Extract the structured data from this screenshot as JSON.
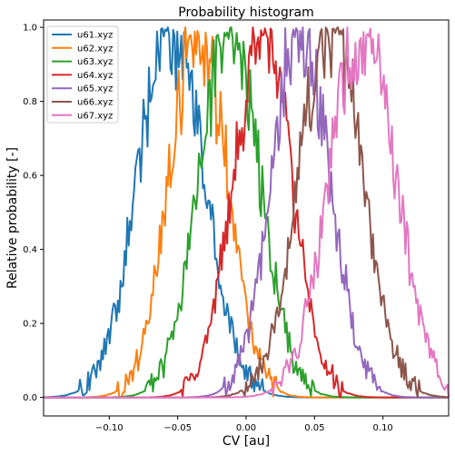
{
  "chart_data": {
    "type": "line",
    "title": "Probability histogram",
    "xlabel": "CV [au]",
    "ylabel": "Relative probability [-]",
    "xlim": [
      -0.148,
      0.148
    ],
    "ylim": [
      -0.05,
      1.02
    ],
    "xticks": [
      -0.1,
      -0.05,
      0.0,
      0.05,
      0.1
    ],
    "xtick_labels": [
      "−0.10",
      "−0.05",
      "0.00",
      "0.05",
      "0.10"
    ],
    "yticks": [
      0.0,
      0.2,
      0.4,
      0.6,
      0.8,
      1.0
    ],
    "ytick_labels": [
      "0.0",
      "0.2",
      "0.4",
      "0.6",
      "0.8",
      "1.0"
    ],
    "grid": false,
    "legend": "top-left",
    "series": [
      {
        "name": "u61.xyz",
        "color": "#1f77b4",
        "peak_x": -0.055,
        "width": 0.024,
        "noise_seed": 1
      },
      {
        "name": "u62.xyz",
        "color": "#ff7f0e",
        "peak_x": -0.035,
        "width": 0.021,
        "noise_seed": 2
      },
      {
        "name": "u63.xyz",
        "color": "#2ca02c",
        "peak_x": -0.012,
        "width": 0.022,
        "noise_seed": 3
      },
      {
        "name": "u64.xyz",
        "color": "#d62728",
        "peak_x": 0.012,
        "width": 0.021,
        "noise_seed": 4
      },
      {
        "name": "u65.xyz",
        "color": "#9467bd",
        "peak_x": 0.04,
        "width": 0.021,
        "noise_seed": 5
      },
      {
        "name": "u66.xyz",
        "color": "#8c564b",
        "peak_x": 0.062,
        "width": 0.023,
        "noise_seed": 6
      },
      {
        "name": "u67.xyz",
        "color": "#e377c2",
        "peak_x": 0.085,
        "width": 0.024,
        "noise_seed": 7
      }
    ]
  }
}
